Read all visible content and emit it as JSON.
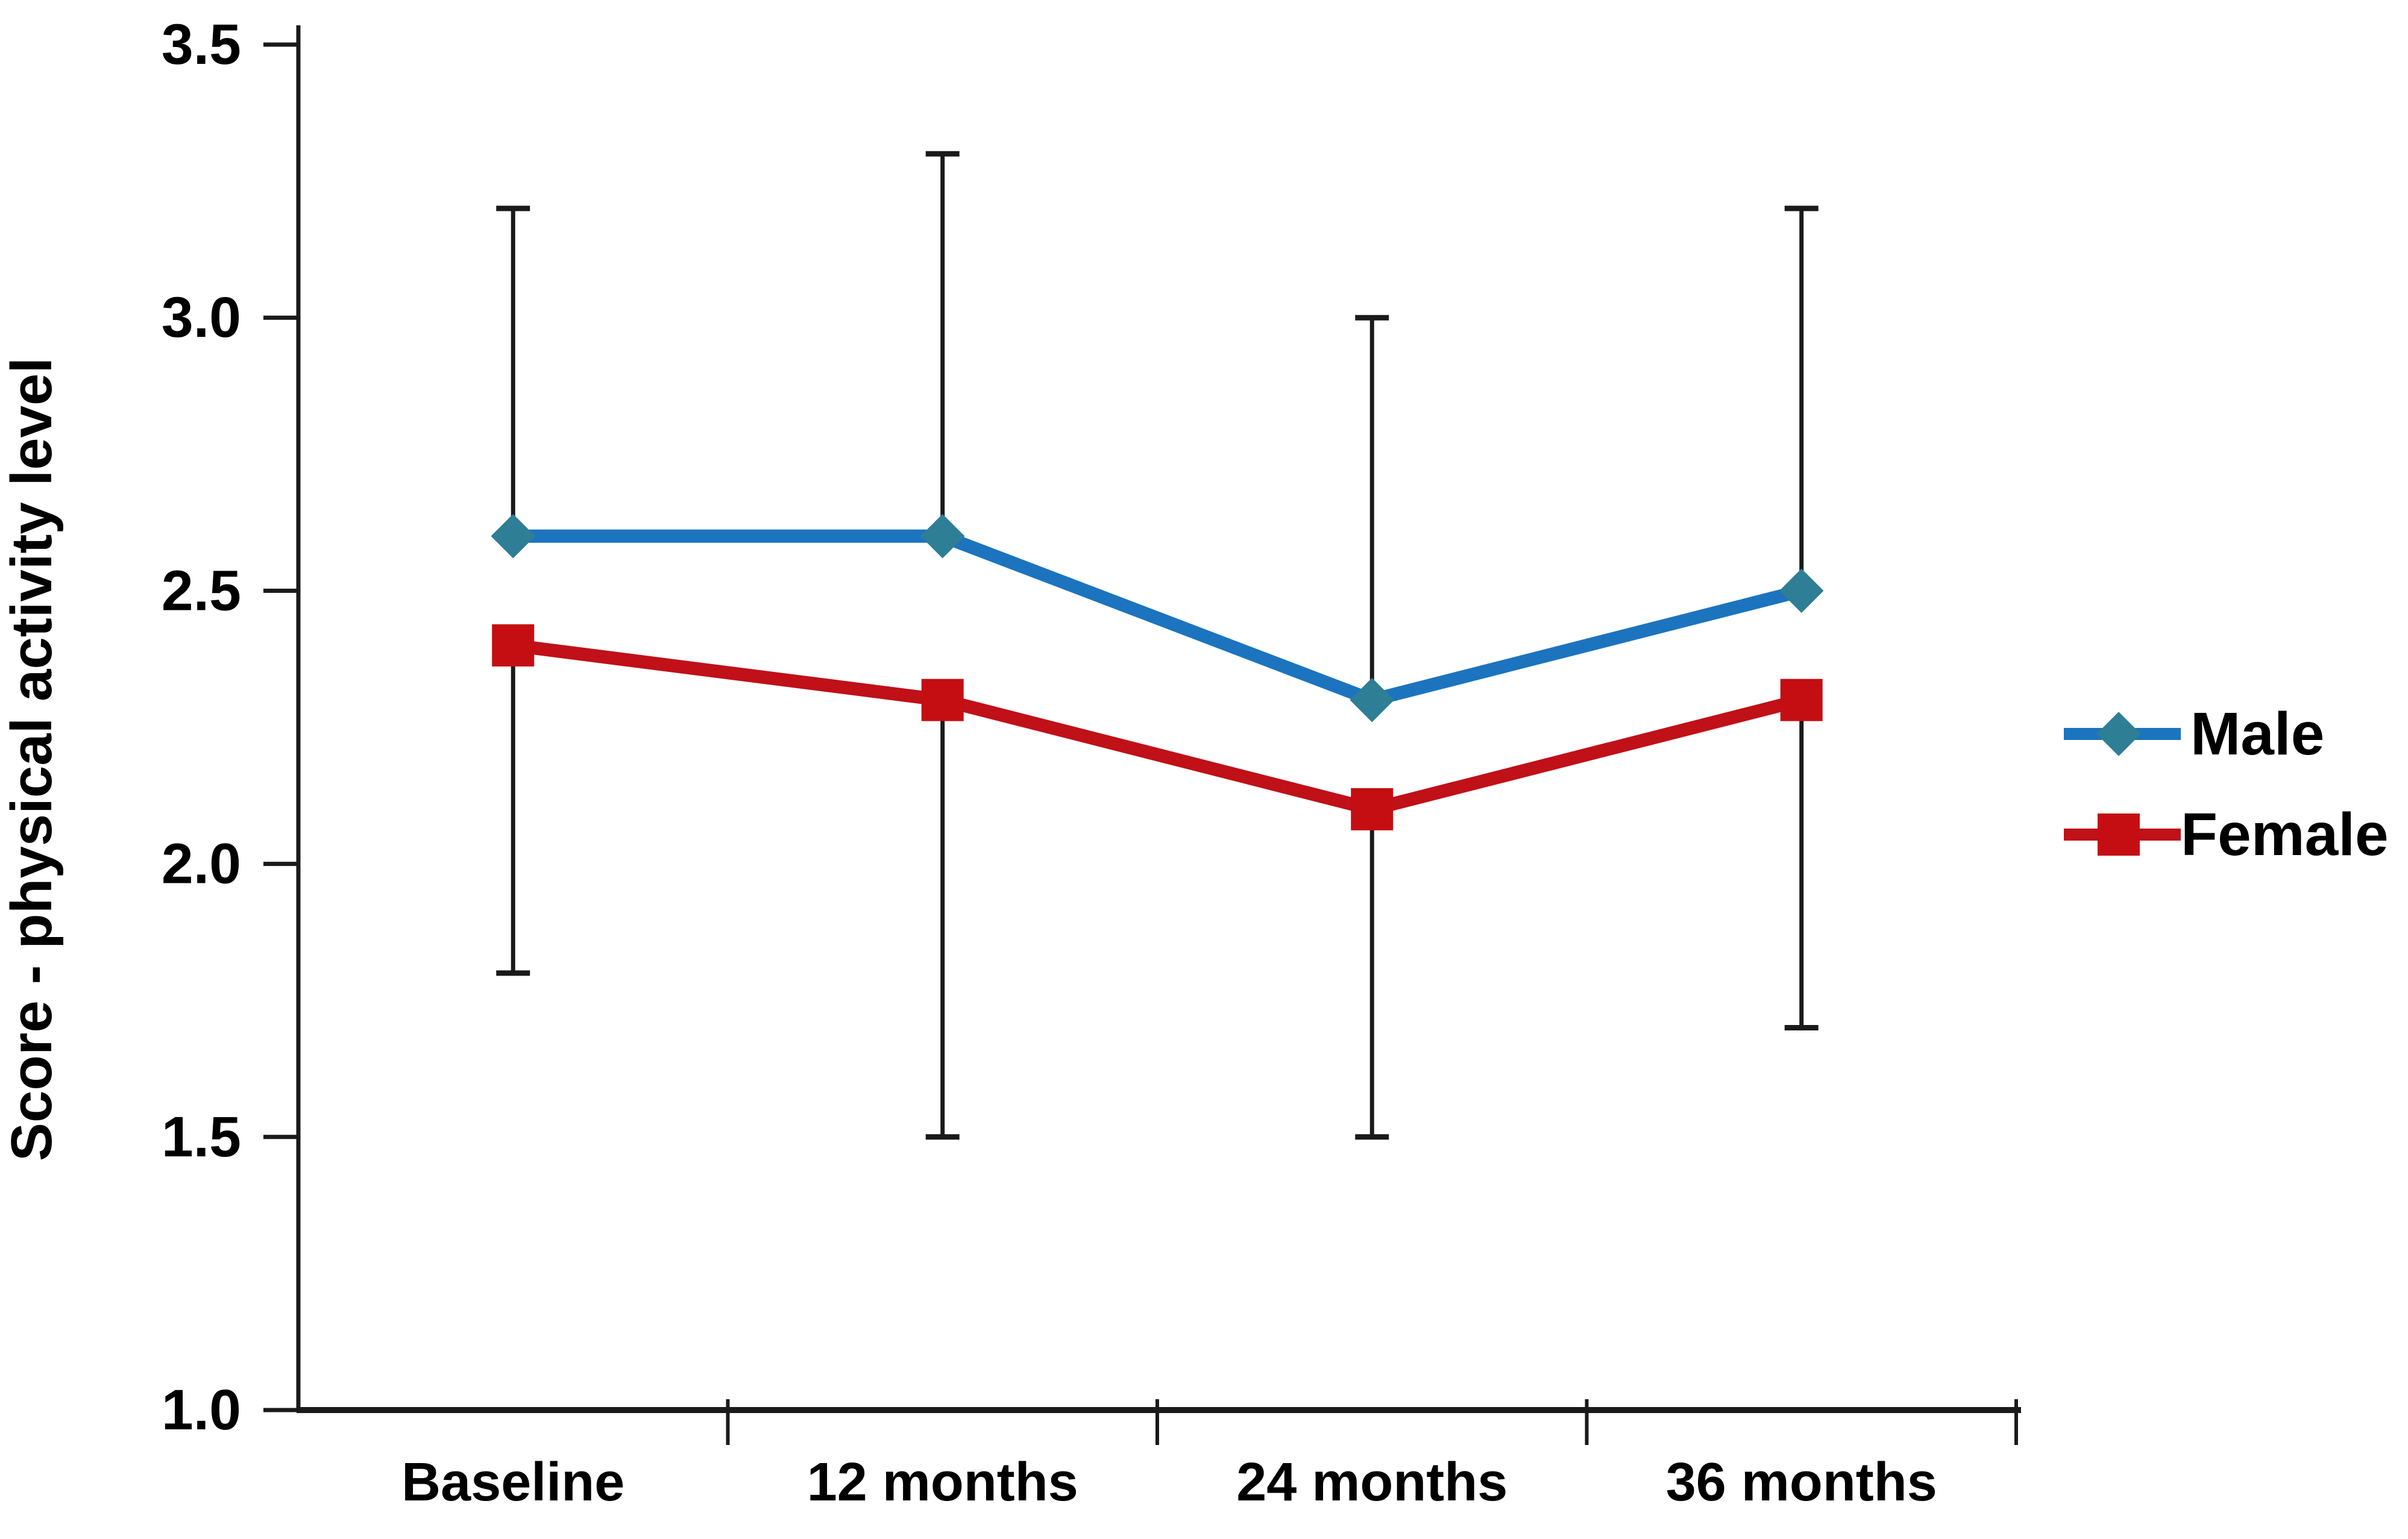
{
  "figure": {
    "background": "#ffffff",
    "axis_color": "#1a1a1a",
    "text_color": "#000000"
  },
  "chart_data": {
    "type": "line",
    "title": "",
    "xlabel": "",
    "ylabel": "Score - physical activity level",
    "categories": [
      "Baseline",
      "12 months",
      "24 months",
      "36 months"
    ],
    "y_ticks": [
      "3.5",
      "3.0",
      "2.5",
      "2.0",
      "1.5",
      "1.0"
    ],
    "ylim": [
      1.0,
      3.5
    ],
    "grid": false,
    "legend_position": "right",
    "error_bar_color": "#1a1a1a",
    "series": [
      {
        "name": "Male",
        "marker": "diamond",
        "line_color": "#1C74BE",
        "marker_color": "#2E7E96",
        "values": [
          2.6,
          2.6,
          2.3,
          2.5
        ],
        "error_upper": [
          3.2,
          3.3,
          3.0,
          3.2
        ]
      },
      {
        "name": "Female",
        "marker": "square",
        "line_color": "#C01018",
        "marker_color": "#C40E12",
        "values": [
          2.4,
          2.3,
          2.1,
          2.3
        ],
        "error_lower": [
          1.8,
          1.5,
          1.5,
          1.7
        ]
      }
    ]
  }
}
